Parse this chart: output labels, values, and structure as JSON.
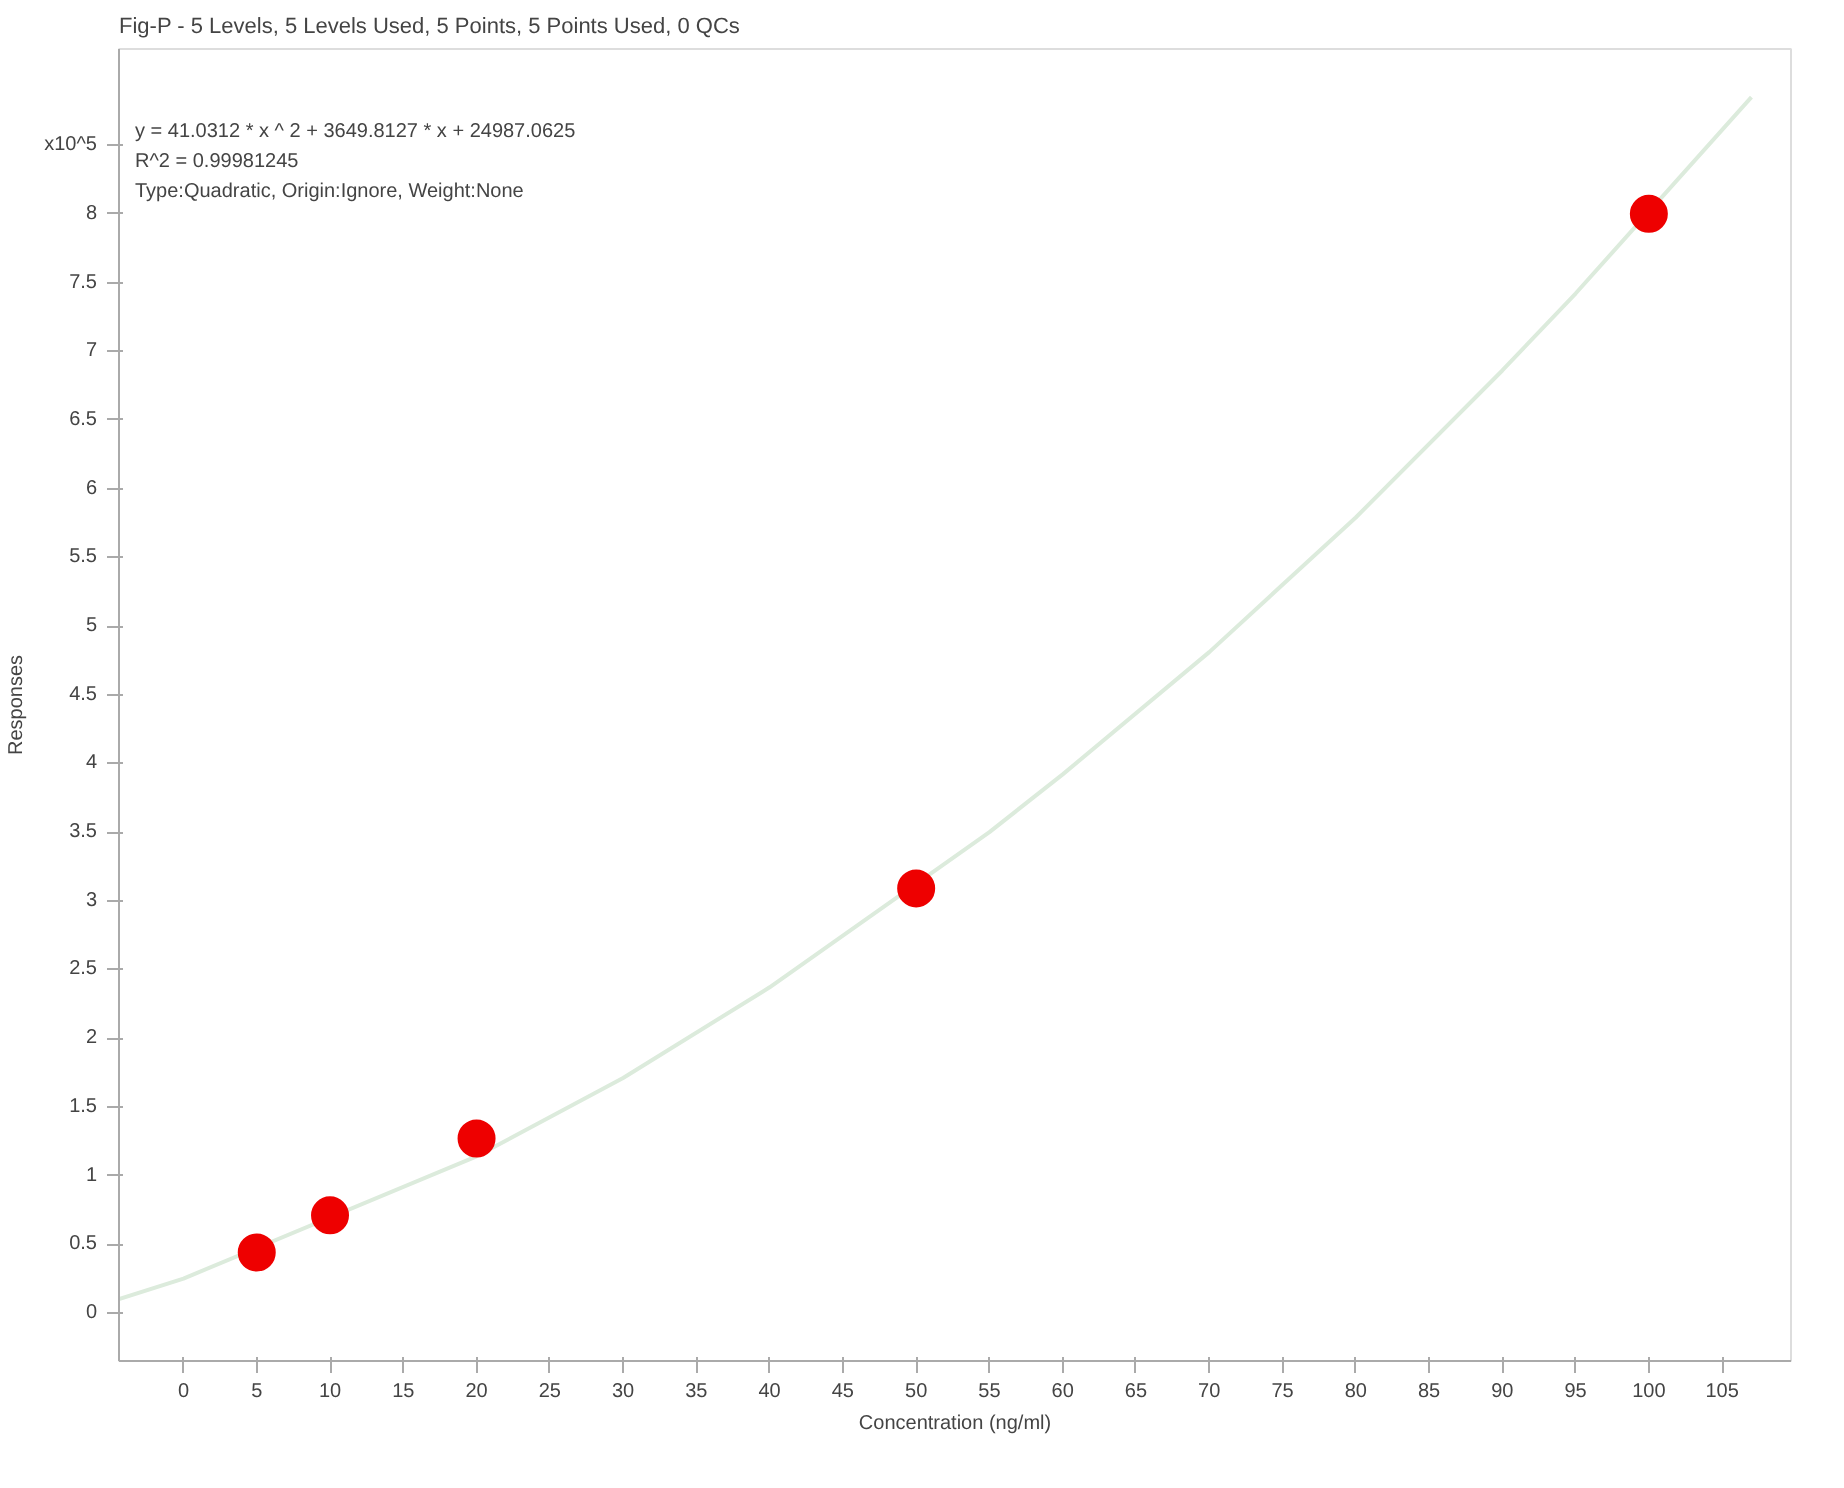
{
  "chart_data": {
    "type": "scatter",
    "title": "Fig-P - 5 Levels, 5 Levels Used, 5 Points, 5 Points Used, 0 QCs",
    "xlabel": "Concentration (ng/ml)",
    "ylabel": "Responses",
    "annotations": [
      "y = 41.0312 * x ^ 2 + 3649.8127 * x + 24987.0625",
      "R^2 = 0.99981245",
      "Type:Quadratic, Origin:Ignore, Weight:None"
    ],
    "xlim": [
      -4.4,
      109.7
    ],
    "xticks": [
      0,
      5,
      10,
      15,
      20,
      25,
      30,
      35,
      40,
      45,
      50,
      55,
      60,
      65,
      70,
      75,
      80,
      85,
      90,
      95,
      100,
      105
    ],
    "ylim": [
      -0.35,
      9.2
    ],
    "yticks": [
      0,
      0.5,
      1,
      1.5,
      2,
      2.5,
      3,
      3.5,
      4,
      4.5,
      5,
      5.5,
      6,
      6.5,
      7,
      7.5,
      8,
      {
        "value": 8.5,
        "label": "x10^5"
      }
    ],
    "grid": false,
    "series": [
      {
        "type": "line",
        "color": "#dcebdc",
        "marker": "none",
        "x": [
          -4.4,
          0,
          20,
          30,
          40,
          55,
          60,
          70,
          80,
          90,
          95,
          107
        ],
        "values": [
          0.1,
          0.25,
          1.14,
          1.71,
          2.37,
          3.5,
          3.92,
          4.81,
          5.79,
          6.86,
          7.42,
          8.85
        ]
      },
      {
        "color": "#ee0000",
        "marker": "circle",
        "x": [
          5,
          10,
          20,
          50,
          100
        ],
        "values": [
          0.44,
          0.71,
          1.27,
          3.09,
          8.0
        ]
      }
    ]
  }
}
